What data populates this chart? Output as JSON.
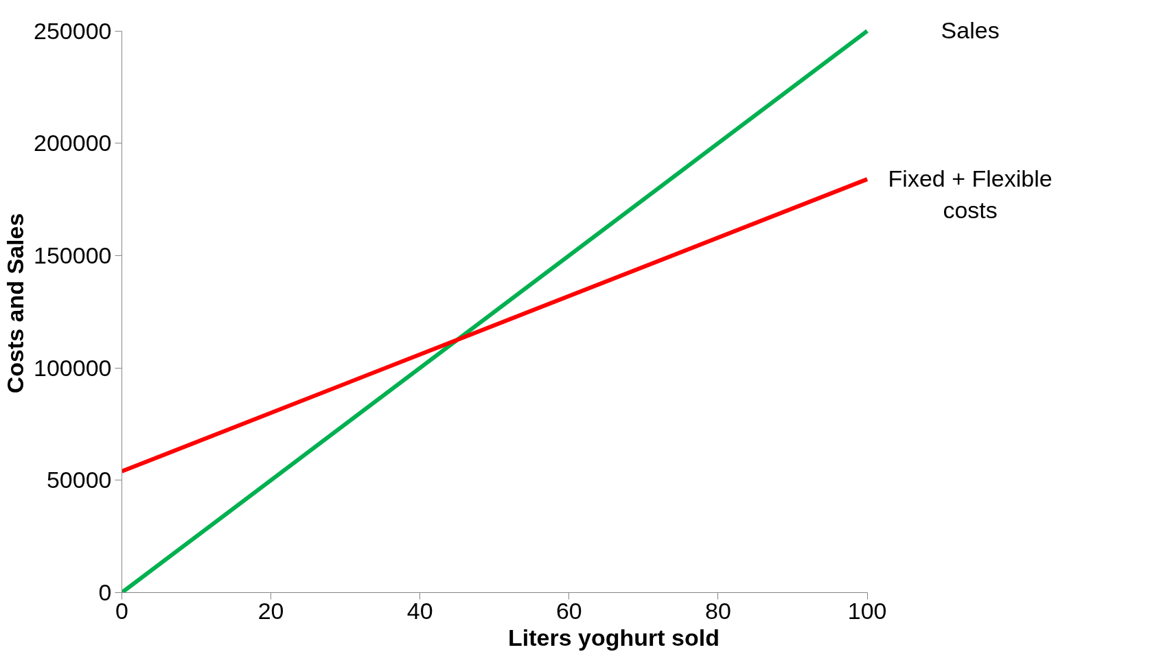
{
  "chart_data": {
    "type": "line",
    "xlabel": "Liters yoghurt sold",
    "ylabel": "Costs and Sales",
    "x": [
      0,
      100
    ],
    "series": [
      {
        "name": "Sales",
        "color": "#00b050",
        "values": [
          0,
          250000
        ]
      },
      {
        "name": "Fixed + Flexible costs",
        "color": "#ff0000",
        "values": [
          54000,
          184000
        ]
      }
    ],
    "xlim": [
      0,
      100
    ],
    "xticks": [
      0,
      20,
      40,
      60,
      80,
      100
    ],
    "ylim": [
      0,
      250000
    ],
    "yticks": [
      0,
      50000,
      100000,
      150000,
      200000,
      250000
    ],
    "grid": false,
    "legend": false,
    "marker": "none",
    "line_style": "solid"
  }
}
